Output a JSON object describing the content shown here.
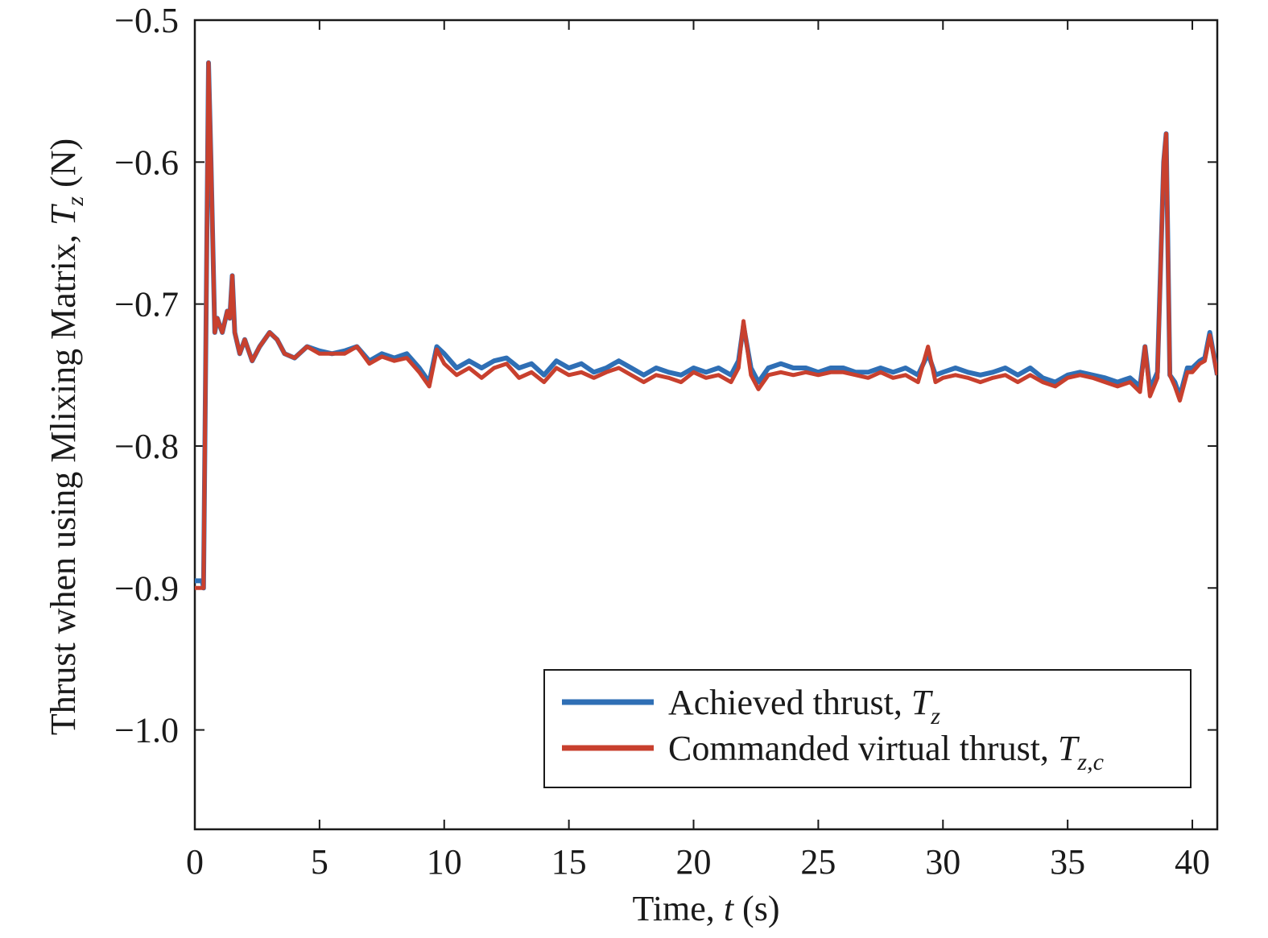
{
  "chart_data": {
    "type": "line",
    "xlabel": {
      "prefix": "Time, ",
      "var": "t",
      "suffix": " (s)"
    },
    "ylabel": {
      "prefix": "Thrust when using Mlixing Matrix, ",
      "var": "T",
      "sub": "z",
      "suffix": " (N)"
    },
    "xlim": [
      0,
      41
    ],
    "ylim": [
      -1.07,
      -0.5
    ],
    "xticks": [
      0,
      5,
      10,
      15,
      20,
      25,
      30,
      35,
      40
    ],
    "xtick_labels": [
      "0",
      "5",
      "10",
      "15",
      "20",
      "25",
      "30",
      "35",
      "40"
    ],
    "yticks": [
      -0.5,
      -0.6,
      -0.7,
      -0.8,
      -0.9,
      -1.0
    ],
    "ytick_labels": [
      "−0.5",
      "−0.6",
      "−0.7",
      "−0.8",
      "−0.9",
      "−1.0"
    ],
    "grid": false,
    "legend_position": "bottom-right",
    "series": [
      {
        "name": "Achieved thrust, T_z",
        "legend": {
          "prefix": "Achieved thrust, ",
          "var": "T",
          "sub": "z"
        },
        "color": "#2f6fb5",
        "x": [
          0,
          0.3,
          0.35,
          0.5,
          0.55,
          0.65,
          0.8,
          0.9,
          1.1,
          1.3,
          1.4,
          1.5,
          1.6,
          1.8,
          2.0,
          2.3,
          2.6,
          3.0,
          3.3,
          3.6,
          4.0,
          4.5,
          5.0,
          5.5,
          6.0,
          6.5,
          7.0,
          7.5,
          8.0,
          8.5,
          9.0,
          9.4,
          9.7,
          10.0,
          10.5,
          11.0,
          11.5,
          12.0,
          12.5,
          13.0,
          13.5,
          14.0,
          14.5,
          15.0,
          15.5,
          16.0,
          16.5,
          17.0,
          17.5,
          18.0,
          18.5,
          19.0,
          19.5,
          20.0,
          20.5,
          21.0,
          21.5,
          21.8,
          22.0,
          22.3,
          22.6,
          23.0,
          23.5,
          24.0,
          24.5,
          25.0,
          25.5,
          26.0,
          26.5,
          27.0,
          27.5,
          28.0,
          28.5,
          29.0,
          29.4,
          29.7,
          30.0,
          30.5,
          31.0,
          31.5,
          32.0,
          32.5,
          33.0,
          33.5,
          34.0,
          34.5,
          35.0,
          35.5,
          36.0,
          36.5,
          37.0,
          37.5,
          37.9,
          38.1,
          38.3,
          38.6,
          38.85,
          38.95,
          39.1,
          39.3,
          39.5,
          39.8,
          40.0,
          40.3,
          40.5,
          40.7,
          41.0
        ],
        "y": [
          -0.895,
          -0.895,
          -0.9,
          -0.62,
          -0.53,
          -0.6,
          -0.72,
          -0.71,
          -0.72,
          -0.705,
          -0.71,
          -0.68,
          -0.72,
          -0.735,
          -0.725,
          -0.74,
          -0.73,
          -0.72,
          -0.725,
          -0.735,
          -0.738,
          -0.73,
          -0.733,
          -0.735,
          -0.733,
          -0.73,
          -0.74,
          -0.735,
          -0.738,
          -0.735,
          -0.745,
          -0.755,
          -0.73,
          -0.735,
          -0.745,
          -0.74,
          -0.745,
          -0.74,
          -0.738,
          -0.745,
          -0.742,
          -0.75,
          -0.74,
          -0.745,
          -0.742,
          -0.748,
          -0.745,
          -0.74,
          -0.745,
          -0.75,
          -0.745,
          -0.748,
          -0.75,
          -0.745,
          -0.748,
          -0.745,
          -0.75,
          -0.74,
          -0.715,
          -0.745,
          -0.755,
          -0.745,
          -0.742,
          -0.745,
          -0.745,
          -0.748,
          -0.745,
          -0.745,
          -0.748,
          -0.748,
          -0.745,
          -0.748,
          -0.745,
          -0.75,
          -0.735,
          -0.75,
          -0.748,
          -0.745,
          -0.748,
          -0.75,
          -0.748,
          -0.745,
          -0.75,
          -0.745,
          -0.752,
          -0.755,
          -0.75,
          -0.748,
          -0.75,
          -0.752,
          -0.755,
          -0.752,
          -0.758,
          -0.73,
          -0.76,
          -0.748,
          -0.6,
          -0.58,
          -0.75,
          -0.755,
          -0.765,
          -0.745,
          -0.745,
          -0.74,
          -0.738,
          -0.72,
          -0.75
        ]
      },
      {
        "name": "Commanded virtual thrust, T_z,c",
        "legend": {
          "prefix": "Commanded virtual thrust, ",
          "var": "T",
          "sub": "z,c"
        },
        "color": "#c8402e",
        "x": [
          0,
          0.3,
          0.35,
          0.5,
          0.55,
          0.65,
          0.8,
          0.9,
          1.1,
          1.3,
          1.4,
          1.5,
          1.6,
          1.8,
          2.0,
          2.3,
          2.6,
          3.0,
          3.3,
          3.6,
          4.0,
          4.5,
          5.0,
          5.5,
          6.0,
          6.5,
          7.0,
          7.5,
          8.0,
          8.5,
          9.0,
          9.4,
          9.7,
          10.0,
          10.5,
          11.0,
          11.5,
          12.0,
          12.5,
          13.0,
          13.5,
          14.0,
          14.5,
          15.0,
          15.5,
          16.0,
          16.5,
          17.0,
          17.5,
          18.0,
          18.5,
          19.0,
          19.5,
          20.0,
          20.5,
          21.0,
          21.5,
          21.8,
          22.0,
          22.3,
          22.6,
          23.0,
          23.5,
          24.0,
          24.5,
          25.0,
          25.5,
          26.0,
          26.5,
          27.0,
          27.5,
          28.0,
          28.5,
          29.0,
          29.4,
          29.7,
          30.0,
          30.5,
          31.0,
          31.5,
          32.0,
          32.5,
          33.0,
          33.5,
          34.0,
          34.5,
          35.0,
          35.5,
          36.0,
          36.5,
          37.0,
          37.5,
          37.9,
          38.1,
          38.3,
          38.6,
          38.85,
          38.95,
          39.1,
          39.3,
          39.5,
          39.8,
          40.0,
          40.3,
          40.5,
          40.7,
          41.0
        ],
        "y": [
          -0.9,
          -0.9,
          -0.9,
          -0.62,
          -0.53,
          -0.6,
          -0.72,
          -0.71,
          -0.72,
          -0.705,
          -0.71,
          -0.68,
          -0.72,
          -0.735,
          -0.725,
          -0.74,
          -0.73,
          -0.72,
          -0.725,
          -0.735,
          -0.738,
          -0.73,
          -0.735,
          -0.735,
          -0.735,
          -0.73,
          -0.742,
          -0.737,
          -0.74,
          -0.738,
          -0.748,
          -0.758,
          -0.732,
          -0.742,
          -0.75,
          -0.745,
          -0.752,
          -0.745,
          -0.742,
          -0.752,
          -0.748,
          -0.755,
          -0.745,
          -0.75,
          -0.748,
          -0.752,
          -0.748,
          -0.745,
          -0.75,
          -0.755,
          -0.75,
          -0.752,
          -0.755,
          -0.748,
          -0.752,
          -0.75,
          -0.755,
          -0.745,
          -0.712,
          -0.75,
          -0.76,
          -0.75,
          -0.748,
          -0.75,
          -0.748,
          -0.75,
          -0.748,
          -0.748,
          -0.75,
          -0.752,
          -0.748,
          -0.752,
          -0.75,
          -0.755,
          -0.73,
          -0.755,
          -0.752,
          -0.75,
          -0.752,
          -0.755,
          -0.752,
          -0.75,
          -0.755,
          -0.75,
          -0.755,
          -0.758,
          -0.752,
          -0.75,
          -0.752,
          -0.755,
          -0.758,
          -0.755,
          -0.762,
          -0.73,
          -0.765,
          -0.752,
          -0.6,
          -0.58,
          -0.75,
          -0.758,
          -0.768,
          -0.748,
          -0.748,
          -0.742,
          -0.74,
          -0.722,
          -0.75
        ]
      }
    ]
  }
}
